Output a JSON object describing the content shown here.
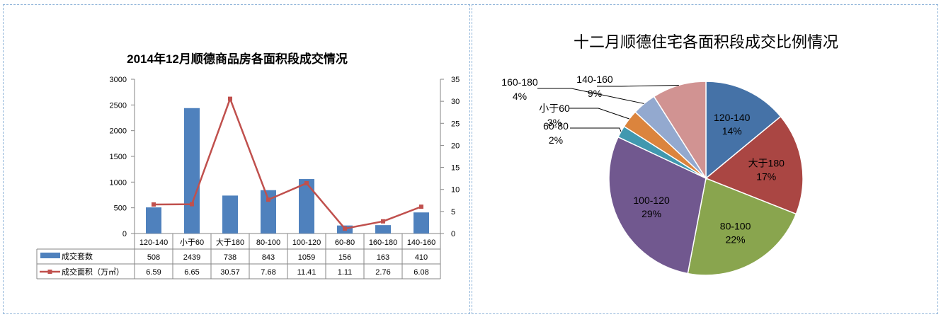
{
  "colors": {
    "bar": "#4f81bd",
    "line": "#c0504d",
    "pie": [
      "#4572a7",
      "#aa4643",
      "#89a54e",
      "#71588f",
      "#4198af",
      "#db843d",
      "#93a9cf",
      "#d19392"
    ]
  },
  "chart_data": [
    {
      "type": "bar",
      "title": "2014年12月顺德商品房各面积段成交情况",
      "categories": [
        "120-140",
        "小于60",
        "大于180",
        "80-100",
        "100-120",
        "60-80",
        "160-180",
        "140-160"
      ],
      "series": [
        {
          "name": "成交套数",
          "type": "bar",
          "axis": "left",
          "values": [
            508,
            2439,
            738,
            843,
            1059,
            156,
            163,
            410
          ]
        },
        {
          "name": "成交面积（万㎡）",
          "type": "line",
          "axis": "right",
          "values": [
            6.59,
            6.65,
            30.57,
            7.68,
            11.41,
            1.11,
            2.76,
            6.08
          ]
        }
      ],
      "y_left": {
        "ylim": [
          0,
          3000
        ],
        "ticks": [
          "0",
          "500",
          "1000",
          "1500",
          "2000",
          "2500",
          "3000"
        ]
      },
      "y_right": {
        "ylim": [
          0,
          35
        ],
        "ticks": [
          "0",
          "5",
          "10",
          "15",
          "20",
          "25",
          "30",
          "35"
        ]
      },
      "data_table": true,
      "grid": false
    },
    {
      "type": "pie",
      "title": "十二月顺德住宅各面积段成交比例情况",
      "slices": [
        {
          "label": "120-140",
          "percent": "14%",
          "value": 14
        },
        {
          "label": "大于180",
          "percent": "17%",
          "value": 17
        },
        {
          "label": "80-100",
          "percent": "22%",
          "value": 22
        },
        {
          "label": "100-120",
          "percent": "29%",
          "value": 29
        },
        {
          "label": "60-80",
          "percent": "2%",
          "value": 2
        },
        {
          "label": "小于60",
          "percent": "3%",
          "value": 3
        },
        {
          "label": "160-180",
          "percent": "4%",
          "value": 4
        },
        {
          "label": "140-160",
          "percent": "9%",
          "value": 9
        }
      ]
    }
  ]
}
